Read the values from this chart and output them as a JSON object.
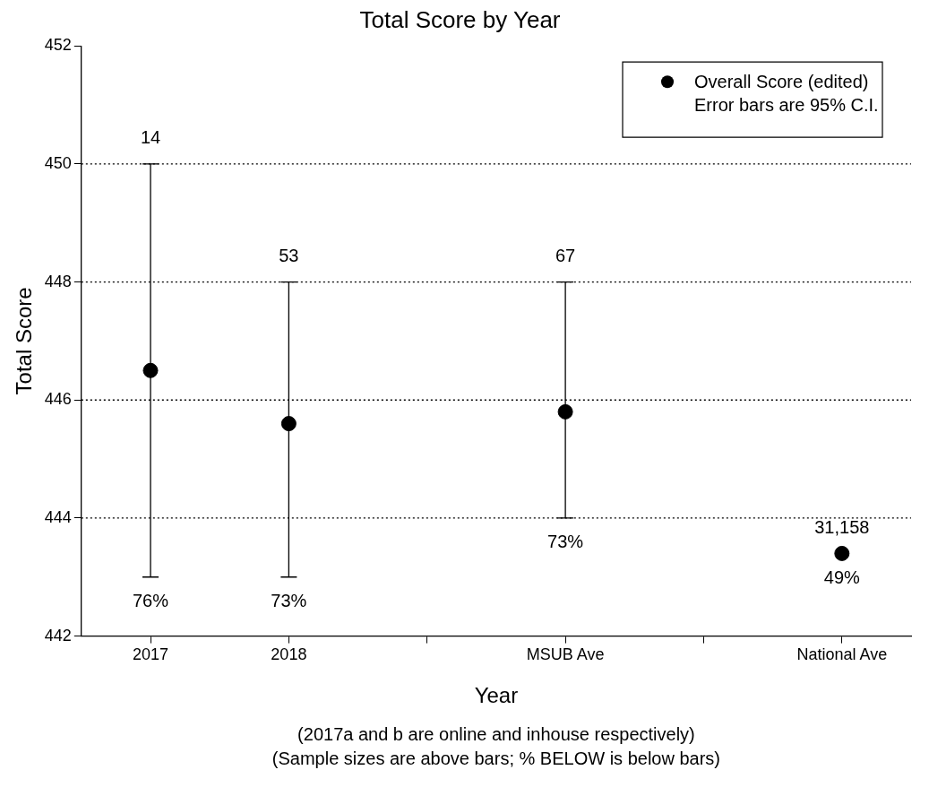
{
  "chart_data": {
    "type": "scatter",
    "title": "Total Score by Year",
    "xlabel": "Year",
    "ylabel": "Total Score",
    "categories": [
      "2017",
      "2018",
      null,
      "MSUB Ave",
      null,
      "National Ave"
    ],
    "series": [
      {
        "name": "Overall Score (edited)",
        "color": "#000000",
        "values": [
          446.5,
          445.6,
          null,
          445.8,
          null,
          443.4
        ],
        "errors": [
          [
            443,
            450
          ],
          [
            443,
            448
          ],
          null,
          [
            444,
            448
          ],
          null,
          null
        ]
      }
    ],
    "ylim": [
      442,
      452
    ],
    "yticks": [
      442,
      444,
      446,
      448,
      450,
      452
    ],
    "grid": "y",
    "line_style": "dotted",
    "legend": "top right",
    "marker": "circle",
    "annotations": [
      "Error bars are 95% C.I.",
      "(2017a and b are online and inhouse respectively)",
      "(Sample sizes are above bars; % BELOW is below bars)",
      {
        "text": "14",
        "x": "2017",
        "y": 450
      },
      {
        "text": "53",
        "x": "2018",
        "y": 448
      },
      {
        "text": "67",
        "x": "MSUB Ave",
        "y": 448
      },
      {
        "text": "31,158",
        "x": "National Ave",
        "y": 443.4
      },
      {
        "text": "76%",
        "x": "2017",
        "y": 443
      },
      {
        "text": "73%",
        "x": "2018",
        "y": 443
      },
      {
        "text": "73%",
        "x": "MSUB Ave",
        "y": 444
      },
      {
        "text": "49%",
        "x": "National Ave",
        "y": 443.4
      }
    ]
  }
}
